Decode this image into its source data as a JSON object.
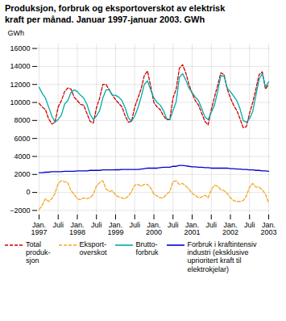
{
  "chart_data": {
    "type": "line",
    "title": "Produksjon, forbruk og eksportoverskot av elektrisk\nkraft per månad. Januar 1997-januar 2003. GWh",
    "y_label": "GWh",
    "categories": [
      "Jan.\n1997",
      null,
      null,
      null,
      null,
      null,
      "Juli",
      null,
      null,
      null,
      null,
      null,
      "Jan.\n1998",
      null,
      null,
      null,
      null,
      null,
      "Juli",
      null,
      null,
      null,
      null,
      null,
      "Jan.\n1999",
      null,
      null,
      null,
      null,
      null,
      "Juli",
      null,
      null,
      null,
      null,
      null,
      "Jan.\n2000",
      null,
      null,
      null,
      null,
      null,
      "Juli",
      null,
      null,
      null,
      null,
      null,
      "Jan.\n2001",
      null,
      null,
      null,
      null,
      null,
      "Juli",
      null,
      null,
      null,
      null,
      null,
      "Jan.\n2002",
      null,
      null,
      null,
      null,
      null,
      "Juli",
      null,
      null,
      null,
      null,
      null,
      "Jan.\n2003"
    ],
    "series": [
      {
        "name": "Total\nproduk-\nsjon",
        "color": "#cc0000",
        "line_style": "dashed",
        "values": [
          9900,
          9500,
          9200,
          8200,
          7600,
          7800,
          9500,
          10200,
          11200,
          11600,
          11500,
          10600,
          10200,
          9800,
          9700,
          8800,
          7900,
          7700,
          9400,
          10500,
          12000,
          12000,
          11400,
          10800,
          10300,
          9900,
          9500,
          8500,
          7800,
          7900,
          9500,
          10500,
          11500,
          13000,
          13500,
          11800,
          10000,
          9500,
          9200,
          8500,
          8100,
          8100,
          10500,
          11500,
          13800,
          14200,
          13300,
          12000,
          11000,
          10200,
          9700,
          8800,
          7900,
          7500,
          9200,
          10600,
          11900,
          13300,
          13100,
          11500,
          10500,
          9700,
          9100,
          8200,
          7200,
          7300,
          8800,
          10000,
          11500,
          13100,
          13400,
          11500,
          12000
        ]
      },
      {
        "name": "Eksport-\noverskot",
        "color": "#f5a623",
        "line_style": "dashed",
        "values": [
          -1900,
          -1400,
          -700,
          -1000,
          -700,
          -100,
          1000,
          1300,
          1200,
          1100,
          200,
          -200,
          -700,
          -800,
          -600,
          -700,
          -600,
          -200,
          700,
          1100,
          1300,
          400,
          100,
          200,
          -300,
          -500,
          -600,
          -700,
          -400,
          100,
          800,
          900,
          700,
          900,
          900,
          500,
          -200,
          -400,
          -600,
          -600,
          -200,
          100,
          1200,
          1300,
          900,
          1000,
          700,
          400,
          -100,
          -300,
          -600,
          -500,
          -300,
          -600,
          300,
          800,
          700,
          300,
          200,
          -100,
          -600,
          -900,
          -1000,
          -1000,
          -900,
          -400,
          600,
          1000,
          600,
          600,
          300,
          -200,
          -1200
        ]
      },
      {
        "name": "Brutto-\nforbruk",
        "color": "#00aaaa",
        "line_style": "solid",
        "values": [
          11700,
          11000,
          10500,
          9500,
          8500,
          7800,
          8100,
          8600,
          9800,
          10200,
          11100,
          11400,
          11200,
          10800,
          10500,
          9800,
          8700,
          8100,
          8500,
          9100,
          10500,
          11400,
          11400,
          10800,
          10800,
          10600,
          10200,
          9400,
          8300,
          7900,
          8500,
          9400,
          10600,
          12000,
          12400,
          11400,
          10500,
          10000,
          9700,
          9100,
          8200,
          8100,
          9100,
          10100,
          12800,
          13200,
          12500,
          11600,
          11100,
          10600,
          10200,
          9300,
          8400,
          8100,
          8900,
          9700,
          11200,
          13000,
          12900,
          11600,
          11200,
          10700,
          10200,
          9300,
          8000,
          7800,
          8200,
          9000,
          10800,
          12600,
          13200,
          11700,
          12300
        ]
      },
      {
        "name": "Forbruk i kraftintensiv\nindustri (eksklusive\nuprioritert kraft til\nelektrokjelar)",
        "color": "#0000cc",
        "line_style": "solid",
        "values": [
          2200,
          2200,
          2250,
          2250,
          2300,
          2300,
          2300,
          2300,
          2350,
          2350,
          2350,
          2350,
          2400,
          2400,
          2400,
          2400,
          2450,
          2450,
          2450,
          2450,
          2500,
          2500,
          2500,
          2500,
          2520,
          2520,
          2550,
          2550,
          2550,
          2550,
          2550,
          2550,
          2600,
          2650,
          2700,
          2700,
          2700,
          2700,
          2750,
          2800,
          2800,
          2800,
          2900,
          2900,
          3000,
          3000,
          2950,
          2900,
          2850,
          2850,
          2800,
          2800,
          2750,
          2750,
          2700,
          2700,
          2700,
          2700,
          2700,
          2700,
          2650,
          2650,
          2600,
          2600,
          2550,
          2550,
          2500,
          2500,
          2450,
          2450,
          2400,
          2400,
          2350
        ]
      }
    ],
    "ylim": [
      -2500,
      16500
    ],
    "yticks": [
      -2000,
      0,
      2000,
      4000,
      6000,
      8000,
      10000,
      12000,
      14000,
      16000
    ],
    "grid": true,
    "legend": "bottom"
  }
}
